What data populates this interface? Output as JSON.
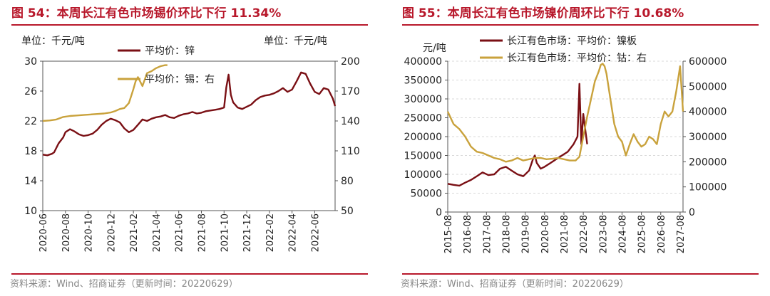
{
  "colors": {
    "red": "#B8182B",
    "zinc_line": "#7A0F14",
    "gold_line": "#C9A23C",
    "source": "#888888"
  },
  "chart_data": [
    {
      "type": "line",
      "title": "图 54：本周长江有色市场锡价环比下行 11.34%",
      "left_unit": "单位：千元/吨",
      "right_unit": "单位：千元/吨",
      "y_left": {
        "min": 10,
        "max": 30,
        "ticks": [
          "10",
          "14",
          "18",
          "22",
          "26",
          "30"
        ]
      },
      "y_right": {
        "min": 50,
        "max": 200,
        "ticks": [
          "50",
          "80",
          "110",
          "140",
          "170",
          "200"
        ]
      },
      "x_ticks": [
        "2020-06",
        "2020-08",
        "2020-10",
        "2020-12",
        "2021-02",
        "2021-04",
        "2021-06",
        "2021-08",
        "2021-10",
        "2021-12",
        "2022-02",
        "2022-04",
        "2022-06"
      ],
      "x_range": [
        0,
        12.9
      ],
      "legend_position": "top",
      "series": [
        {
          "name": "平均价：锌",
          "axis": "left",
          "x": [
            0,
            0.2,
            0.4,
            0.5,
            0.7,
            0.9,
            1.0,
            1.2,
            1.4,
            1.6,
            1.8,
            2.0,
            2.2,
            2.4,
            2.6,
            2.8,
            3.0,
            3.2,
            3.4,
            3.6,
            3.8,
            4.0,
            4.2,
            4.4,
            4.6,
            4.8,
            5.0,
            5.2,
            5.4,
            5.6,
            5.8,
            6.0,
            6.2,
            6.4,
            6.6,
            6.8,
            7.0,
            7.2,
            7.4,
            7.6,
            7.8,
            8.0,
            8.1,
            8.2,
            8.3,
            8.4,
            8.6,
            8.8,
            9.0,
            9.2,
            9.4,
            9.6,
            9.8,
            10.0,
            10.2,
            10.4,
            10.6,
            10.8,
            11.0,
            11.2,
            11.4,
            11.6,
            11.8,
            12.0,
            12.2,
            12.4,
            12.6,
            12.8,
            12.9
          ],
          "y": [
            17.5,
            17.4,
            17.6,
            17.8,
            19.0,
            19.8,
            20.5,
            20.9,
            20.6,
            20.2,
            20.0,
            20.1,
            20.3,
            20.8,
            21.5,
            22.0,
            22.3,
            22.1,
            21.8,
            21.0,
            20.5,
            20.8,
            21.5,
            22.2,
            22.0,
            22.3,
            22.5,
            22.6,
            22.8,
            22.5,
            22.4,
            22.7,
            22.9,
            23.0,
            23.2,
            23.0,
            23.1,
            23.3,
            23.4,
            23.5,
            23.6,
            23.8,
            26.5,
            28.2,
            25.5,
            24.5,
            23.8,
            23.6,
            23.9,
            24.2,
            24.8,
            25.2,
            25.4,
            25.5,
            25.7,
            26.0,
            26.4,
            25.9,
            26.2,
            27.3,
            28.5,
            28.3,
            27.0,
            25.9,
            25.6,
            26.4,
            26.2,
            25.0,
            24.0
          ]
        },
        {
          "name": "平均价：锡：右",
          "axis": "right",
          "x": [
            0,
            0.3,
            0.6,
            0.9,
            1.2,
            1.5,
            1.8,
            2.1,
            2.4,
            2.7,
            3.0,
            3.2,
            3.4,
            3.6,
            3.8,
            3.9,
            4.0,
            4.1,
            4.2,
            4.4,
            4.6,
            4.8,
            5.0,
            5.2,
            5.4,
            5.5
          ],
          "y": [
            140,
            140.5,
            141.5,
            144,
            145,
            145.5,
            146,
            146.5,
            147,
            147.5,
            148.5,
            150,
            152,
            153,
            158,
            165,
            172,
            180,
            184,
            175,
            188,
            190,
            193,
            195,
            196,
            196
          ]
        }
      ]
    },
    {
      "type": "line",
      "title": "图 55：本周长江有色市场镍价周环比下行 10.68%",
      "left_unit": "元/吨",
      "y_left": {
        "min": 0,
        "max": 400000,
        "ticks": [
          "0",
          "50000",
          "100000",
          "150000",
          "200000",
          "250000",
          "300000",
          "350000",
          "400000"
        ]
      },
      "y_right": {
        "min": 0,
        "max": 600000,
        "ticks": [
          "0",
          "100000",
          "200000",
          "300000",
          "400000",
          "500000",
          "600000"
        ]
      },
      "x_ticks": [
        "2015-08",
        "2016-08",
        "2017-08",
        "2018-08",
        "2019-08",
        "2020-08",
        "2021-08",
        "2022-08",
        "2023-08",
        "2024-08",
        "2025-08",
        "2026-08",
        "2027-08"
      ],
      "x_range": [
        0,
        12.15
      ],
      "legend_position": "top",
      "series": [
        {
          "name": "长江有色市场：平均价：镍板",
          "axis": "left",
          "x": [
            0,
            0.3,
            0.6,
            0.9,
            1.2,
            1.5,
            1.8,
            2.1,
            2.4,
            2.7,
            3.0,
            3.3,
            3.6,
            3.9,
            4.2,
            4.4,
            4.5,
            4.6,
            4.8,
            5.0,
            5.3,
            5.6,
            5.9,
            6.2,
            6.5,
            6.7,
            6.8,
            6.9,
            7.0,
            7.1,
            7.2
          ],
          "y": [
            75000,
            72000,
            70000,
            78000,
            85000,
            95000,
            105000,
            98000,
            100000,
            115000,
            120000,
            110000,
            100000,
            95000,
            110000,
            140000,
            150000,
            130000,
            115000,
            120000,
            130000,
            140000,
            150000,
            160000,
            180000,
            200000,
            340000,
            180000,
            260000,
            220000,
            180000
          ]
        },
        {
          "name": "长江有色市场：平均价：钴：右",
          "axis": "right",
          "x": [
            0,
            0.3,
            0.6,
            0.9,
            1.2,
            1.5,
            1.8,
            2.1,
            2.4,
            2.7,
            3.0,
            3.3,
            3.6,
            3.9,
            4.2,
            4.5,
            4.8,
            5.1,
            5.4,
            5.7,
            6.0,
            6.3,
            6.6,
            6.8,
            7.0,
            7.2,
            7.4,
            7.6,
            7.8,
            7.9,
            8.0,
            8.1,
            8.2,
            8.4,
            8.6,
            8.8,
            9.0,
            9.2,
            9.4,
            9.6,
            9.8,
            10.0,
            10.2,
            10.4,
            10.6,
            10.8,
            11.0,
            11.2,
            11.4,
            11.6,
            11.8,
            12.0,
            12.15
          ],
          "y": [
            400000,
            350000,
            330000,
            300000,
            260000,
            240000,
            235000,
            225000,
            215000,
            210000,
            200000,
            205000,
            215000,
            205000,
            210000,
            215000,
            215000,
            210000,
            212000,
            215000,
            210000,
            205000,
            205000,
            220000,
            300000,
            380000,
            450000,
            520000,
            560000,
            585000,
            590000,
            580000,
            550000,
            450000,
            350000,
            300000,
            280000,
            225000,
            270000,
            310000,
            280000,
            260000,
            270000,
            300000,
            290000,
            270000,
            350000,
            400000,
            380000,
            400000,
            480000,
            580000,
            400000
          ]
        }
      ]
    }
  ],
  "source_left": "资料来源：Wind、招商证券（更新时间：20220629）",
  "source_right": "资料来源：Wind、招商证券（更新时间：20220629）"
}
